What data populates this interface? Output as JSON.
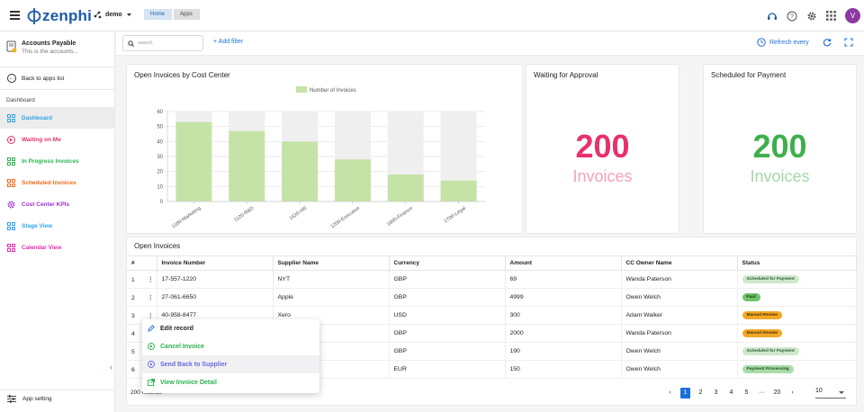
{
  "header": {
    "logo_text": "zenphi",
    "workspace": "demo",
    "breadcrumbs": [
      "Home",
      "Apps"
    ],
    "avatar_letter": "V"
  },
  "sidebar": {
    "app_title": "Accounts Payable",
    "app_subtitle": "This is the accounts...",
    "back_label": "Back to apps list",
    "section_label": "Dashboard",
    "items": [
      {
        "label": "Dashboard",
        "color": "#2fa4e7",
        "icon": "grid-icon",
        "active": true
      },
      {
        "label": "Waiting on Me",
        "color": "#e8306b",
        "icon": "forward-icon"
      },
      {
        "label": "In Progress Invoices",
        "color": "#2bb24c",
        "icon": "grid-icon"
      },
      {
        "label": "Scheduled Invoices",
        "color": "#f06a1b",
        "icon": "grid-icon"
      },
      {
        "label": "Cost Center KPIs",
        "color": "#9b2fd0",
        "icon": "gear-icon"
      },
      {
        "label": "Stage View",
        "color": "#2fa4e7",
        "icon": "grid-icon"
      },
      {
        "label": "Calendar View",
        "color": "#e22bb1",
        "icon": "grid-icon"
      }
    ],
    "settings_label": "App setting"
  },
  "toolbar": {
    "search_placeholder": "search",
    "add_filter": "+ Add filter",
    "refresh_label": "Refresh every"
  },
  "cards": {
    "chart_title": "Open Invoices by Cost Center",
    "waiting": {
      "title": "Waiting for Approval",
      "value": "200",
      "unit": "Invoices",
      "color": "#e8306b",
      "unit_color": "#f3a3bf"
    },
    "scheduled": {
      "title": "Scheduled for Payment",
      "value": "200",
      "unit": "Invoices",
      "color": "#3eaf4c",
      "unit_color": "#a6d7a9"
    }
  },
  "chart_data": {
    "type": "bar",
    "title": "Open Invoices by Cost Center",
    "categories": [
      "1180-Marketing",
      "1120-R&D",
      "1620-HR",
      "1200-Executive",
      "1800-Finance",
      "1700-Legal"
    ],
    "series": [
      {
        "name": "Number of Invoices",
        "values": [
          53,
          47,
          40,
          28,
          18,
          14
        ],
        "color": "#c5e3a6"
      }
    ],
    "ylim": [
      0,
      60
    ],
    "yticks": [
      0,
      10,
      20,
      30,
      40,
      50,
      60
    ],
    "grid": true,
    "legend": "top-center"
  },
  "table": {
    "title": "Open Invoices",
    "columns": [
      "#",
      "Invoice Number",
      "Supplier Name",
      "Currency",
      "Amount",
      "CC Owner Name",
      "Status"
    ],
    "rows": [
      {
        "n": "1",
        "invoice": "17-557-1220",
        "supplier": "NYT",
        "currency": "GBP",
        "amount": "69",
        "owner": "Wanda Paterson",
        "status": "Scheduled for Payment",
        "bg": "#cfe8cd",
        "fg": "#2c5e2c"
      },
      {
        "n": "2",
        "invoice": "27-061-6650",
        "supplier": "Apple",
        "currency": "GBP",
        "amount": "4999",
        "owner": "Owen Welch",
        "status": "Paid",
        "bg": "#6fc36f",
        "fg": "#153d15"
      },
      {
        "n": "3",
        "invoice": "40-958-8477",
        "supplier": "Xero",
        "currency": "USD",
        "amount": "300",
        "owner": "Adam Walker",
        "status": "Manual Review",
        "bg": "#f3a826",
        "fg": "#4a2f00"
      },
      {
        "n": "4",
        "invoice": "",
        "supplier": "",
        "currency": "GBP",
        "amount": "2000",
        "owner": "Wanda Paterson",
        "status": "Manual Review",
        "bg": "#f3a826",
        "fg": "#4a2f00"
      },
      {
        "n": "5",
        "invoice": "",
        "supplier": "",
        "currency": "GBP",
        "amount": "190",
        "owner": "Owen Welch",
        "status": "Scheduled for Payment",
        "bg": "#cfe8cd",
        "fg": "#2c5e2c"
      },
      {
        "n": "6",
        "invoice": "",
        "supplier": "",
        "currency": "EUR",
        "amount": "150",
        "owner": "Owen Welch",
        "status": "Payment Processing",
        "bg": "#a9dca9",
        "fg": "#1d4d1d"
      }
    ],
    "record_count": "200 records",
    "pages": [
      "1",
      "2",
      "3",
      "4",
      "5",
      "···",
      "20"
    ],
    "page_size": "10"
  },
  "context_menu": {
    "items": [
      {
        "label": "Edit record",
        "color": "#222",
        "icon": "edit-icon"
      },
      {
        "label": "Cancel Invoice",
        "color": "#2bb24c",
        "icon": "play-icon"
      },
      {
        "label": "Send Back to Supplier",
        "color": "#6a6ad8",
        "icon": "play-icon"
      },
      {
        "label": "View Invoice Detail",
        "color": "#2bb24c",
        "icon": "open-icon"
      }
    ]
  }
}
